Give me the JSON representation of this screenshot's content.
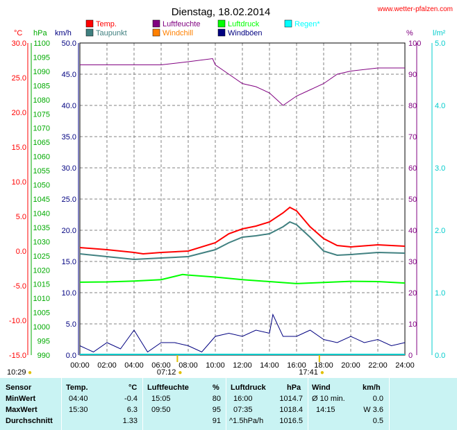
{
  "chart_data": {
    "type": "line",
    "title": "Dienstag, 18.02.2014",
    "source": "www.wetter-pfalzen.com",
    "axis_units": {
      "temp": "°C",
      "pressure": "hPa",
      "wind": "km/h",
      "humidity": "%",
      "rain": "l/m²"
    },
    "temp_axis": {
      "min": -15,
      "max": 30,
      "ticks": [
        "30.0",
        "25.0",
        "20.0",
        "15.0",
        "10.0",
        "5.0",
        "0.0",
        "-5.0",
        "-10.0",
        "-15.0"
      ],
      "color": "#ff0000"
    },
    "pressure_axis": {
      "min": 990,
      "max": 1100,
      "ticks": [
        "1100",
        "1095",
        "1090",
        "1085",
        "1080",
        "1075",
        "1070",
        "1065",
        "1060",
        "1055",
        "1050",
        "1045",
        "1040",
        "1035",
        "1030",
        "1025",
        "1020",
        "1015",
        "1010",
        "1005",
        "1000",
        "995",
        "990"
      ],
      "color": "#00aa00"
    },
    "wind_axis": {
      "min": 0,
      "max": 50,
      "ticks": [
        "50.0",
        "45.0",
        "40.0",
        "35.0",
        "30.0",
        "25.0",
        "20.0",
        "15.0",
        "10.0",
        "5.0",
        "0.0"
      ],
      "color": "#000080"
    },
    "humidity_axis": {
      "min": 0,
      "max": 100,
      "ticks": [
        "100",
        "90",
        "80",
        "70",
        "60",
        "50",
        "40",
        "30",
        "20",
        "10",
        "0"
      ],
      "color": "#800080"
    },
    "rain_axis": {
      "min": 0,
      "max": 5,
      "ticks": [
        "5.0",
        "4.0",
        "3.0",
        "2.0",
        "1.0",
        "0.0"
      ],
      "color": "#00cccc"
    },
    "x_ticks": [
      "00:00",
      "02:00",
      "04:00",
      "06:00",
      "08:00",
      "10:00",
      "12:00",
      "14:00",
      "16:00",
      "18:00",
      "20:00",
      "22:00",
      "24:00"
    ],
    "legend": [
      {
        "label": "Temp.",
        "color": "#ff0000"
      },
      {
        "label": "Luftfeuchte",
        "color": "#800080"
      },
      {
        "label": "Luftdruck",
        "color": "#00ff00"
      },
      {
        "label": "Regen*",
        "color": "#00ffff"
      },
      {
        "label": "Taupunkt",
        "color": "#408080"
      },
      {
        "label": "Windchill",
        "color": "#ff8000"
      },
      {
        "label": "Windböen",
        "color": "#000080"
      }
    ],
    "sun": {
      "sunrise": "07:12",
      "sunset": "17:41",
      "left_time": "10:29"
    },
    "series": [
      {
        "name": "Temp.",
        "axis": "temp",
        "color": "#ff0000",
        "x": [
          0,
          2,
          4,
          4.67,
          6,
          8,
          10,
          11,
          12,
          13,
          14,
          15,
          15.5,
          16,
          17,
          18,
          19,
          20,
          22,
          24
        ],
        "values": [
          0.5,
          0.2,
          -0.2,
          -0.4,
          -0.2,
          0,
          1.2,
          2.5,
          3.2,
          3.6,
          4.2,
          5.5,
          6.3,
          5.8,
          3.5,
          1.8,
          0.8,
          0.6,
          0.9,
          0.7
        ]
      },
      {
        "name": "Taupunkt",
        "axis": "temp",
        "color": "#408080",
        "x": [
          0,
          2,
          4,
          6,
          8,
          10,
          11,
          12,
          13,
          14,
          15,
          15.5,
          16,
          17,
          18,
          19,
          20,
          22,
          24
        ],
        "values": [
          -0.4,
          -0.8,
          -1.2,
          -1.0,
          -0.8,
          0.2,
          1.2,
          2.0,
          2.2,
          2.5,
          3.5,
          4.2,
          3.8,
          2.0,
          0.0,
          -0.6,
          -0.5,
          -0.2,
          -0.3
        ]
      },
      {
        "name": "Luftfeuchte",
        "axis": "humidity",
        "color": "#800080",
        "x": [
          0,
          6,
          8,
          9.8,
          10,
          11,
          12,
          13,
          14,
          14.5,
          15,
          16,
          17,
          18,
          19,
          20,
          22,
          24
        ],
        "values": [
          93,
          93,
          94,
          95,
          93,
          90,
          87,
          86,
          84,
          82,
          80,
          83,
          85,
          87,
          90,
          91,
          92,
          92
        ]
      },
      {
        "name": "Luftdruck",
        "axis": "pressure",
        "color": "#00ff00",
        "x": [
          0,
          2,
          4,
          6,
          7.58,
          8,
          10,
          12,
          14,
          16,
          18,
          20,
          22,
          24
        ],
        "values": [
          1015.7,
          1015.8,
          1016.1,
          1016.6,
          1018.4,
          1018.2,
          1017.5,
          1016.6,
          1015.9,
          1015.2,
          1015.6,
          1016.0,
          1015.9,
          1015.4
        ]
      },
      {
        "name": "Windböen",
        "axis": "wind",
        "color": "#000080",
        "x": [
          0,
          1,
          2,
          3,
          4,
          5,
          6,
          7,
          8,
          9,
          10,
          11,
          12,
          13,
          14,
          14.25,
          15,
          16,
          17,
          18,
          19,
          20,
          21,
          22,
          23,
          24
        ],
        "values": [
          1.5,
          0.5,
          2,
          1,
          4,
          0.5,
          2,
          2,
          1.5,
          0.5,
          3,
          3.5,
          3,
          4,
          3.5,
          6.5,
          3,
          3,
          4,
          2.5,
          2,
          3,
          2,
          2.5,
          1.5,
          2
        ]
      }
    ]
  },
  "table": {
    "headers": {
      "sensor": "Sensor",
      "temp": "Temp.",
      "temp_unit": "°C",
      "hum": "Luftfeuchte",
      "hum_unit": "%",
      "press": "Luftdruck",
      "press_unit": "hPa",
      "wind": "Wind",
      "wind_unit": "km/h"
    },
    "rows": [
      {
        "label": "MinWert",
        "temp_time": "04:40",
        "temp_val": "-0.4",
        "hum_time": "15:05",
        "hum_val": "80",
        "press_time": "16:00",
        "press_val": "1014.7",
        "wind_time": "Ø 10 min.",
        "wind_val": "0.0"
      },
      {
        "label": "MaxWert",
        "temp_time": "15:30",
        "temp_val": "6.3",
        "hum_time": "09:50",
        "hum_val": "95",
        "press_time": "07:35",
        "press_val": "1018.4",
        "wind_time": "14:15",
        "wind_val": "W 3.6"
      },
      {
        "label": "Durchschnitt",
        "temp_time": "",
        "temp_val": "1.33",
        "hum_time": "",
        "hum_val": "91",
        "press_time": "^1.5hPa/h",
        "press_val": "1016.5",
        "wind_time": "",
        "wind_val": "0.5"
      }
    ]
  }
}
